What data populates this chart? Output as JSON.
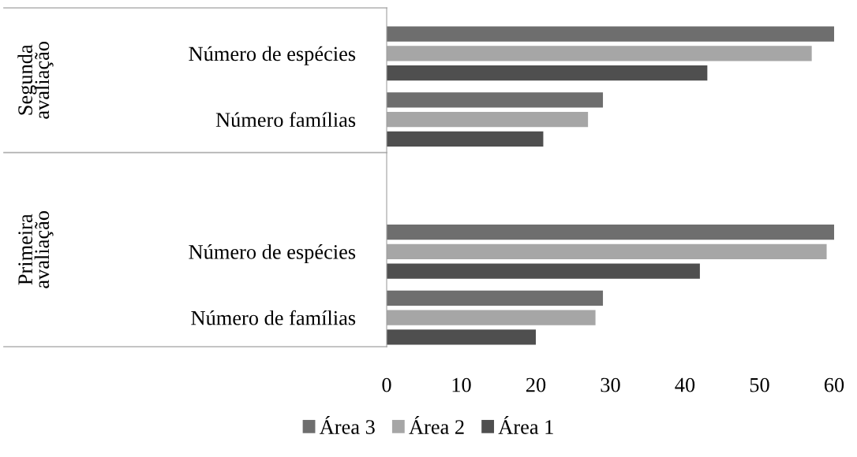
{
  "chart_data": {
    "type": "bar",
    "orientation": "horizontal",
    "categories": [
      "Número de espécies",
      "Número famílias",
      null,
      "Número de espécies",
      "Número de famílias"
    ],
    "series": [
      {
        "name": "Área 3",
        "color": "#6e6e6e",
        "values": [
          60,
          29,
          null,
          60,
          29
        ]
      },
      {
        "name": "Área 2",
        "color": "#a6a6a6",
        "values": [
          57,
          27,
          null,
          59,
          28
        ]
      },
      {
        "name": "Área 1",
        "color": "#4f4f4f",
        "values": [
          43,
          21,
          null,
          42,
          20
        ]
      }
    ],
    "annotations": [
      "Segunda avaliação",
      "Primeira avaliação"
    ],
    "xlim": [
      0,
      60
    ],
    "xticks": [
      0,
      10,
      20,
      30,
      40,
      50,
      60
    ],
    "grid": false,
    "legend": "bottom"
  }
}
